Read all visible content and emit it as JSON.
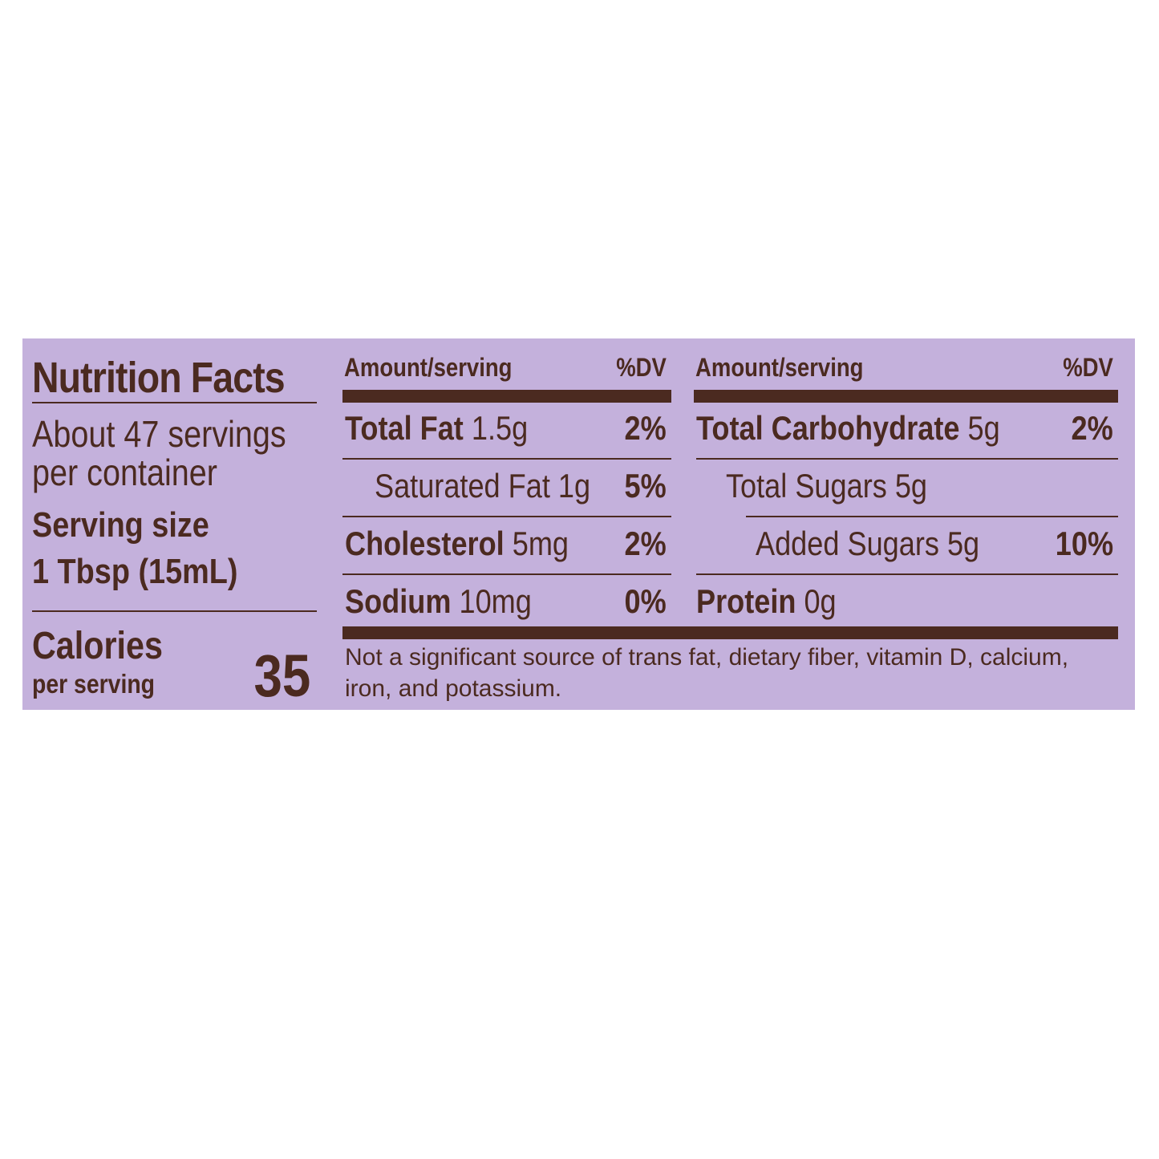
{
  "title": "Nutrition Facts",
  "servings": [
    "About 47 servings",
    "per container"
  ],
  "serving_size": {
    "label": "Serving size",
    "value": "1 Tbsp (15mL)"
  },
  "calories": {
    "label": "Calories",
    "sublabel": "per serving",
    "value": "35"
  },
  "columns": [
    {
      "header": {
        "amount": "Amount/serving",
        "dv": "%DV"
      },
      "rows": [
        {
          "name": "Total Fat",
          "amount": "1.5g",
          "dv": "2%",
          "bold": true,
          "indent": 0
        },
        {
          "name": "Saturated Fat",
          "amount": "1g",
          "dv": "5%",
          "bold": false,
          "indent": 1
        },
        {
          "name": "Cholesterol",
          "amount": "5mg",
          "dv": "2%",
          "bold": true,
          "indent": 0
        },
        {
          "name": "Sodium",
          "amount": "10mg",
          "dv": "0%",
          "bold": true,
          "indent": 0
        }
      ]
    },
    {
      "header": {
        "amount": "Amount/serving",
        "dv": "%DV"
      },
      "rows": [
        {
          "name": "Total Carbohydrate",
          "amount": "5g",
          "dv": "2%",
          "bold": true,
          "indent": 0
        },
        {
          "name": "Total Sugars",
          "amount": "5g",
          "bold": false,
          "indent": 1
        },
        {
          "name": "Added Sugars",
          "amount": "5g",
          "dv": "10%",
          "bold": false,
          "indent": 2
        },
        {
          "name": "Protein",
          "amount": "0g",
          "bold": true,
          "indent": 0
        }
      ]
    }
  ],
  "footnote": "Not a significant source of trans fat, dietary fiber, vitamin D, calcium, iron, and potassium."
}
